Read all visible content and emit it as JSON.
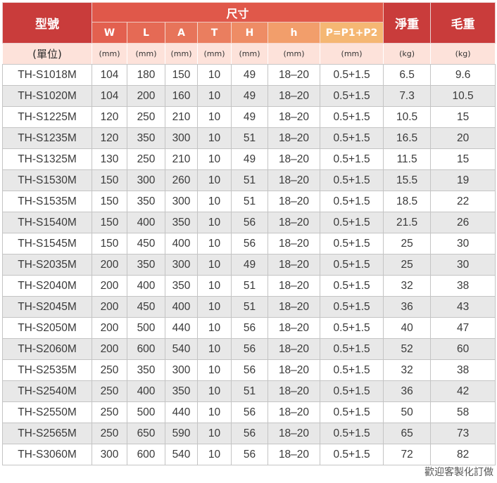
{
  "header": {
    "model": "型號",
    "size": "尺寸",
    "net_weight": "淨重",
    "gross_weight": "毛重",
    "subheaders": [
      "W",
      "L",
      "A",
      "T",
      "H",
      "h",
      "P=P1+P2"
    ],
    "subheader_colors": [
      "#e3604f",
      "#e56a55",
      "#e7745a",
      "#ea7e5f",
      "#ee8c65",
      "#f29e6b",
      "#f5b773"
    ]
  },
  "units": {
    "model": "(單位)",
    "cols": [
      "(mm)",
      "(mm)",
      "(mm)",
      "(mm)",
      "(mm)",
      "(mm)",
      "(mm)",
      "(kg)",
      "(kg)"
    ]
  },
  "rows": [
    [
      "TH-S1018M",
      "104",
      "180",
      "150",
      "10",
      "49",
      "18–20",
      "0.5+1.5",
      "6.5",
      "9.6"
    ],
    [
      "TH-S1020M",
      "104",
      "200",
      "160",
      "10",
      "49",
      "18–20",
      "0.5+1.5",
      "7.3",
      "10.5"
    ],
    [
      "TH-S1225M",
      "120",
      "250",
      "210",
      "10",
      "49",
      "18–20",
      "0.5+1.5",
      "10.5",
      "15"
    ],
    [
      "TH-S1235M",
      "120",
      "350",
      "300",
      "10",
      "51",
      "18–20",
      "0.5+1.5",
      "16.5",
      "20"
    ],
    [
      "TH-S1325M",
      "130",
      "250",
      "210",
      "10",
      "49",
      "18–20",
      "0.5+1.5",
      "11.5",
      "15"
    ],
    [
      "TH-S1530M",
      "150",
      "300",
      "260",
      "10",
      "51",
      "18–20",
      "0.5+1.5",
      "15.5",
      "19"
    ],
    [
      "TH-S1535M",
      "150",
      "350",
      "300",
      "10",
      "51",
      "18–20",
      "0.5+1.5",
      "18.5",
      "22"
    ],
    [
      "TH-S1540M",
      "150",
      "400",
      "350",
      "10",
      "56",
      "18–20",
      "0.5+1.5",
      "21.5",
      "26"
    ],
    [
      "TH-S1545M",
      "150",
      "450",
      "400",
      "10",
      "56",
      "18–20",
      "0.5+1.5",
      "25",
      "30"
    ],
    [
      "TH-S2035M",
      "200",
      "350",
      "300",
      "10",
      "49",
      "18–20",
      "0.5+1.5",
      "25",
      "30"
    ],
    [
      "TH-S2040M",
      "200",
      "400",
      "350",
      "10",
      "51",
      "18–20",
      "0.5+1.5",
      "32",
      "38"
    ],
    [
      "TH-S2045M",
      "200",
      "450",
      "400",
      "10",
      "51",
      "18–20",
      "0.5+1.5",
      "36",
      "43"
    ],
    [
      "TH-S2050M",
      "200",
      "500",
      "440",
      "10",
      "56",
      "18–20",
      "0.5+1.5",
      "40",
      "47"
    ],
    [
      "TH-S2060M",
      "200",
      "600",
      "540",
      "10",
      "56",
      "18–20",
      "0.5+1.5",
      "52",
      "60"
    ],
    [
      "TH-S2535M",
      "250",
      "350",
      "300",
      "10",
      "56",
      "18–20",
      "0.5+1.5",
      "32",
      "38"
    ],
    [
      "TH-S2540M",
      "250",
      "400",
      "350",
      "10",
      "51",
      "18–20",
      "0.5+1.5",
      "36",
      "42"
    ],
    [
      "TH-S2550M",
      "250",
      "500",
      "440",
      "10",
      "56",
      "18–20",
      "0.5+1.5",
      "50",
      "58"
    ],
    [
      "TH-S2565M",
      "250",
      "650",
      "590",
      "10",
      "56",
      "18–20",
      "0.5+1.5",
      "65",
      "73"
    ],
    [
      "TH-S3060M",
      "300",
      "600",
      "540",
      "10",
      "56",
      "18–20",
      "0.5+1.5",
      "72",
      "82"
    ]
  ],
  "footnote": "歡迎客製化訂做"
}
